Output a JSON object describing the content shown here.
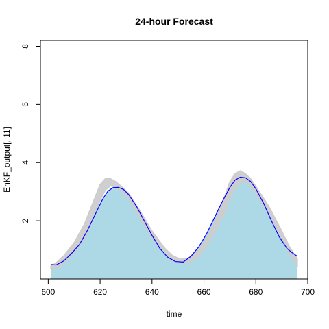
{
  "chart_data": {
    "type": "area",
    "title": "24-hour Forecast",
    "xlabel": "time",
    "ylabel": "EnKF_output[, 11]",
    "xlim": [
      597,
      700
    ],
    "ylim": [
      0,
      8.2
    ],
    "x_ticks": [
      600,
      620,
      640,
      660,
      680,
      700
    ],
    "y_ticks": [
      2,
      4,
      6,
      8
    ],
    "grid": false,
    "legend": "none",
    "series": [
      {
        "role": "ensemble-spread",
        "color": "#cccccc",
        "x": [
          601,
          603,
          606,
          610,
          614,
          618,
          620,
          622,
          624,
          626,
          628,
          631,
          635,
          640,
          645,
          648,
          651,
          654,
          658,
          662,
          665,
          668,
          670,
          672,
          674,
          676,
          678,
          681,
          685,
          690,
          693,
          696
        ],
        "low": [
          0.35,
          0.35,
          0.55,
          0.9,
          1.4,
          2.2,
          2.7,
          3.05,
          3.2,
          3.15,
          3.05,
          2.75,
          2.15,
          1.4,
          0.85,
          0.62,
          0.55,
          0.55,
          0.78,
          1.25,
          1.75,
          2.3,
          2.75,
          3.1,
          3.3,
          3.35,
          3.2,
          2.8,
          2.2,
          1.35,
          0.85,
          0.45
        ],
        "high": [
          0.45,
          0.55,
          0.8,
          1.25,
          1.9,
          2.8,
          3.25,
          3.45,
          3.45,
          3.35,
          3.2,
          2.95,
          2.4,
          1.65,
          1.05,
          0.8,
          0.68,
          0.72,
          1.0,
          1.55,
          2.15,
          2.85,
          3.35,
          3.62,
          3.72,
          3.62,
          3.45,
          3.05,
          2.5,
          1.65,
          1.1,
          0.7
        ]
      },
      {
        "role": "mean",
        "color": "#0000ff",
        "fill": "#add8e6",
        "x": [
          601,
          603,
          606,
          609,
          612,
          615,
          618,
          621,
          623,
          625,
          627,
          629,
          631,
          634,
          637,
          640,
          643,
          646,
          649,
          652,
          655,
          658,
          661,
          664,
          667,
          670,
          672,
          674,
          676,
          678,
          680,
          683,
          686,
          689,
          692,
          694,
          696
        ],
        "values": [
          0.5,
          0.48,
          0.62,
          0.88,
          1.18,
          1.65,
          2.2,
          2.75,
          3.02,
          3.14,
          3.15,
          3.08,
          2.9,
          2.5,
          2.0,
          1.5,
          1.05,
          0.75,
          0.6,
          0.58,
          0.78,
          1.1,
          1.55,
          2.1,
          2.65,
          3.15,
          3.4,
          3.5,
          3.48,
          3.35,
          3.1,
          2.6,
          2.0,
          1.45,
          1.05,
          0.9,
          0.78
        ]
      }
    ]
  }
}
